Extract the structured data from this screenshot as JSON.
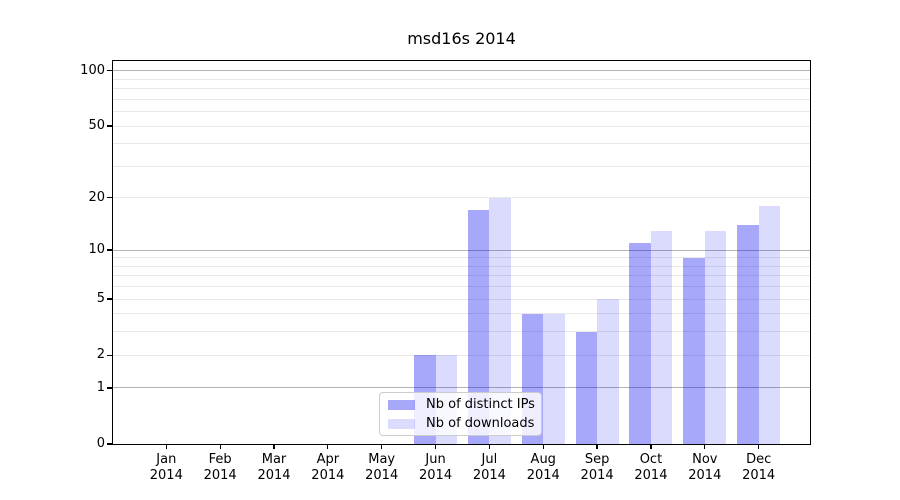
{
  "chart_data": {
    "type": "bar",
    "title": "msd16s 2014",
    "categories": [
      "Jan 2014",
      "Feb 2014",
      "Mar 2014",
      "Apr 2014",
      "May 2014",
      "Jun 2014",
      "Jul 2014",
      "Aug 2014",
      "Sep 2014",
      "Oct 2014",
      "Nov 2014",
      "Dec 2014"
    ],
    "x_tick_labels": [
      [
        "Jan",
        "2014"
      ],
      [
        "Feb",
        "2014"
      ],
      [
        "Mar",
        "2014"
      ],
      [
        "Apr",
        "2014"
      ],
      [
        "May",
        "2014"
      ],
      [
        "Jun",
        "2014"
      ],
      [
        "Jul",
        "2014"
      ],
      [
        "Aug",
        "2014"
      ],
      [
        "Sep",
        "2014"
      ],
      [
        "Oct",
        "2014"
      ],
      [
        "Nov",
        "2014"
      ],
      [
        "Dec",
        "2014"
      ]
    ],
    "series": [
      {
        "name": "Nb of distinct IPs",
        "color": "rgba(0,0,240,0.34)",
        "values": [
          0,
          0,
          0,
          0,
          0,
          2,
          17,
          4,
          3,
          11,
          9,
          14
        ]
      },
      {
        "name": "Nb of downloads",
        "color": "rgba(0,0,240,0.14)",
        "values": [
          0,
          0,
          0,
          0,
          0,
          2,
          20,
          4,
          5,
          13,
          13,
          18
        ]
      }
    ],
    "yscale": "log1p",
    "ylim": [
      0,
      113
    ],
    "yticks_labeled": [
      0,
      1,
      2,
      5,
      10,
      20,
      50,
      100
    ],
    "grid_major": [
      1,
      10,
      100
    ],
    "grid_minor": [
      2,
      3,
      4,
      5,
      6,
      7,
      8,
      9,
      20,
      30,
      40,
      50,
      60,
      70,
      80,
      90
    ],
    "grid": true,
    "xlabel": "",
    "ylabel": "",
    "legend_position": "lower center",
    "colors": {
      "grid_major": "#b3b3b3",
      "grid_minor": "#e9e9e9",
      "axis": "#000000",
      "text": "#000000",
      "background": "#ffffff"
    }
  }
}
